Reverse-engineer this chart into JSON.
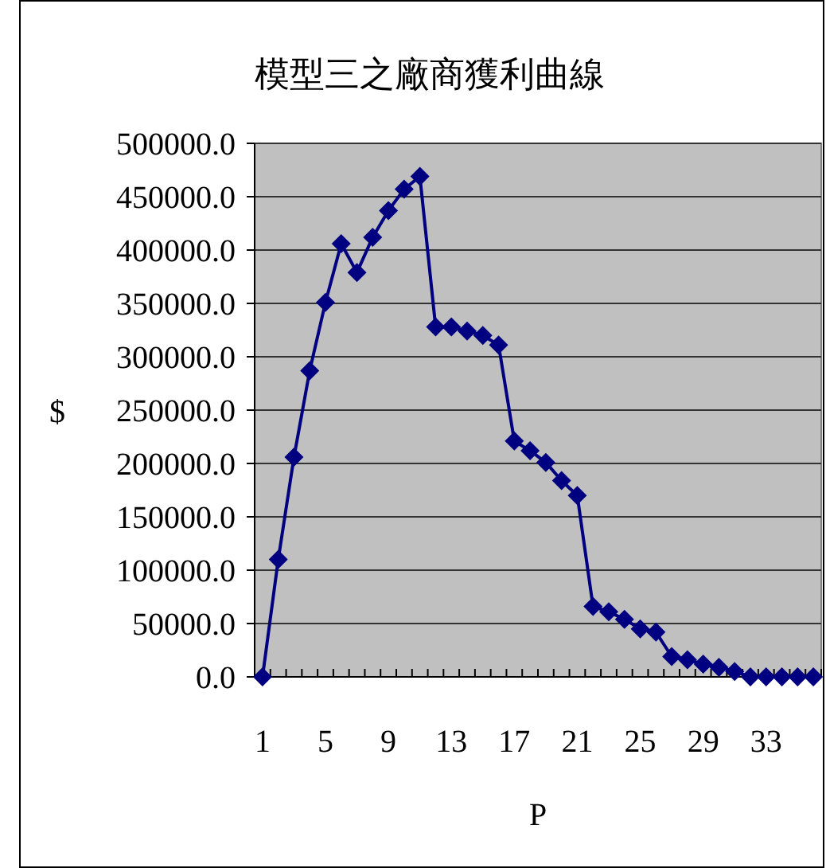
{
  "chart_data": {
    "type": "line",
    "title": "模型三之廠商獲利曲線",
    "xlabel": "P",
    "ylabel": "$",
    "categories": [
      "1",
      null,
      null,
      null,
      "5",
      null,
      null,
      null,
      "9",
      null,
      null,
      null,
      "13",
      null,
      null,
      null,
      "17",
      null,
      null,
      null,
      "21",
      null,
      null,
      null,
      "25",
      null,
      null,
      null,
      "29",
      null,
      null,
      null,
      "33",
      null,
      null,
      null
    ],
    "values": [
      0,
      110000,
      206000,
      287000,
      351000,
      406000,
      379000,
      412000,
      437000,
      457000,
      469000,
      328000,
      328000,
      324000,
      320000,
      311000,
      221000,
      212000,
      201000,
      184000,
      170000,
      66000,
      61000,
      54000,
      45000,
      42000,
      19000,
      16000,
      12000,
      9000,
      5000,
      0,
      0,
      0,
      0,
      0
    ],
    "color": "#000080",
    "marker": "diamond",
    "grid": "y",
    "ylim": [
      0,
      500000
    ],
    "yticks": [
      {
        "value": 0,
        "label": "0.0"
      },
      {
        "value": 50000,
        "label": "50000.0"
      },
      {
        "value": 100000,
        "label": "100000.0"
      },
      {
        "value": 150000,
        "label": "150000.0"
      },
      {
        "value": 200000,
        "label": "200000.0"
      },
      {
        "value": 250000,
        "label": "250000.0"
      },
      {
        "value": 300000,
        "label": "300000.0"
      },
      {
        "value": 350000,
        "label": "350000.0"
      },
      {
        "value": 400000,
        "label": "400000.0"
      },
      {
        "value": 450000,
        "label": "450000.0"
      },
      {
        "value": 500000,
        "label": "500000.0"
      }
    ]
  }
}
